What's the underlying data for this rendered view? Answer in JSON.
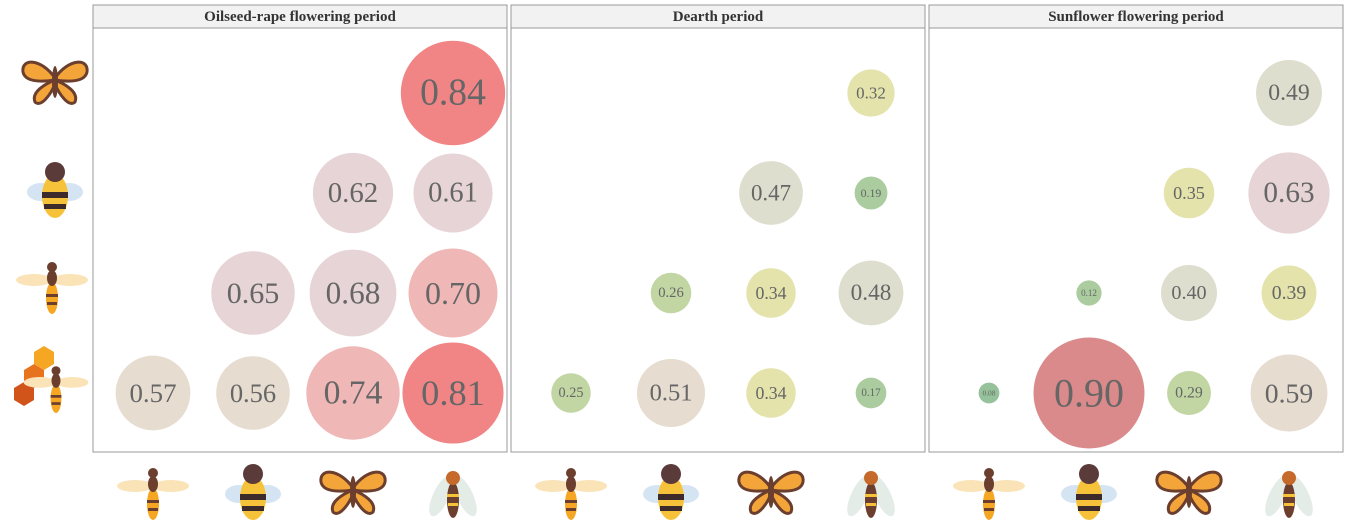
{
  "chart_data": [
    {
      "type": "bubble",
      "title": "Oilseed-rape flowering period",
      "x_categories": [
        null,
        null,
        null,
        null
      ],
      "y_categories": [
        null,
        null,
        null,
        null
      ],
      "values": [
        [
          null,
          null,
          null,
          0.84
        ],
        [
          null,
          null,
          0.62,
          0.61
        ],
        [
          null,
          0.65,
          0.68,
          0.7
        ],
        [
          0.57,
          0.56,
          0.74,
          0.81
        ]
      ],
      "value_labels": [
        [
          null,
          null,
          null,
          "0.84"
        ],
        [
          null,
          null,
          "0.62",
          "0.61"
        ],
        [
          null,
          "0.65",
          "0.68",
          "0.70"
        ],
        [
          "0.57",
          "0.56",
          "0.74",
          "0.81"
        ]
      ],
      "palette": [
        "#8fbf95",
        "#a5c99a",
        "#bfd49f",
        "#e2e2a6",
        "#dcdccb",
        "#e5dace",
        "#e6d2d4",
        "#efb3b3",
        "#f07e7e",
        "#d88484"
      ]
    },
    {
      "type": "bubble",
      "title": "Dearth period",
      "x_categories": [
        null,
        null,
        null,
        null
      ],
      "y_categories": [
        null,
        null,
        null,
        null
      ],
      "values": [
        [
          null,
          null,
          null,
          0.32
        ],
        [
          null,
          null,
          0.47,
          0.19
        ],
        [
          null,
          0.26,
          0.34,
          0.48
        ],
        [
          0.25,
          0.51,
          0.34,
          0.17
        ]
      ],
      "value_labels": [
        [
          null,
          null,
          null,
          "0.32"
        ],
        [
          null,
          null,
          "0.47",
          "0.19"
        ],
        [
          null,
          "0.26",
          "0.34",
          "0.48"
        ],
        [
          "0.25",
          "0.51",
          "0.34",
          "0.17"
        ]
      ],
      "palette": [
        "#8fbf95",
        "#a5c99a",
        "#bfd49f",
        "#e2e2a6",
        "#dcdccb",
        "#e5dace",
        "#e6d2d4",
        "#efb3b3",
        "#f07e7e",
        "#d88484"
      ]
    },
    {
      "type": "bubble",
      "title": "Sunflower flowering period",
      "x_categories": [
        null,
        null,
        null,
        null
      ],
      "y_categories": [
        null,
        null,
        null,
        null
      ],
      "values": [
        [
          null,
          null,
          null,
          0.49
        ],
        [
          null,
          null,
          0.35,
          0.63
        ],
        [
          null,
          0.12,
          0.4,
          0.39
        ],
        [
          0.08,
          0.9,
          0.29,
          0.59
        ]
      ],
      "value_labels": [
        [
          null,
          null,
          null,
          "0.49"
        ],
        [
          null,
          null,
          "0.35",
          "0.63"
        ],
        [
          null,
          "0.12",
          "0.40",
          "0.39"
        ],
        [
          "0.08",
          "0.90",
          "0.29",
          "0.59"
        ]
      ],
      "palette": [
        "#8fbf95",
        "#a5c99a",
        "#bfd49f",
        "#e2e2a6",
        "#dcdccb",
        "#e5dace",
        "#e6d2d4",
        "#efb3b3",
        "#f07e7e",
        "#d88484"
      ]
    }
  ]
}
